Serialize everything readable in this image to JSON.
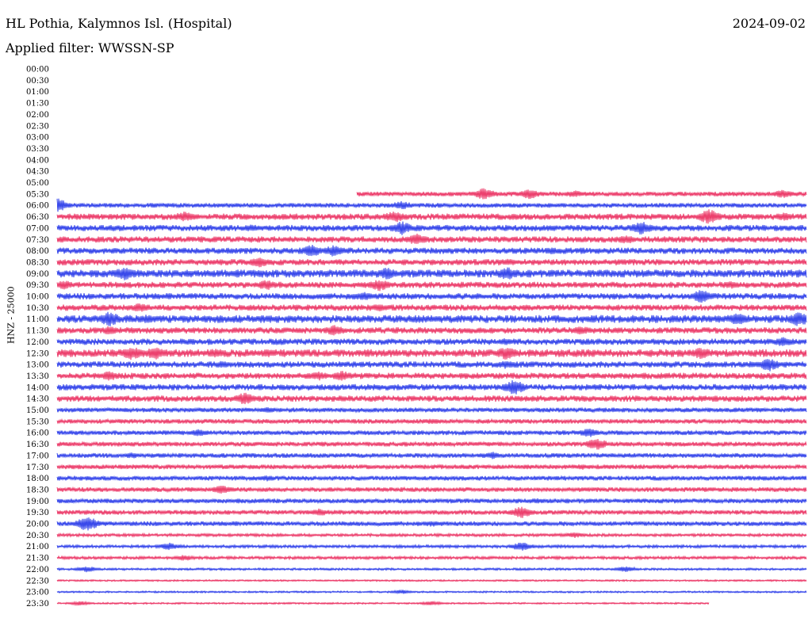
{
  "header": {
    "station": "HL Pothia, Kalymnos Isl. (Hospital)",
    "date": "2024-09-02",
    "filter_label": "Applied filter: WWSSN-SP"
  },
  "chart_data": {
    "type": "line",
    "title": "HL Pothia, Kalymnos Isl. (Hospital)",
    "subtitle": "Applied filter: WWSSN-SP",
    "ylabel": "HNZ - 25000",
    "xlabel": "",
    "grid": false,
    "colors": {
      "odd_rows": "#e8134b",
      "even_rows": "#0a1ee6"
    },
    "rows": [
      {
        "label": "00:00",
        "amp": 0
      },
      {
        "label": "00:30",
        "amp": 0
      },
      {
        "label": "01:00",
        "amp": 0
      },
      {
        "label": "01:30",
        "amp": 0
      },
      {
        "label": "02:00",
        "amp": 0
      },
      {
        "label": "02:30",
        "amp": 0
      },
      {
        "label": "03:00",
        "amp": 0
      },
      {
        "label": "03:30",
        "amp": 0
      },
      {
        "label": "04:00",
        "amp": 0
      },
      {
        "label": "04:30",
        "amp": 0
      },
      {
        "label": "05:00",
        "amp": 0
      },
      {
        "label": "05:30",
        "amp": 3,
        "start": 0.4,
        "events": [
          [
            0.57,
            8
          ],
          [
            0.63,
            7
          ],
          [
            0.69,
            5
          ],
          [
            0.97,
            6
          ]
        ]
      },
      {
        "label": "06:00",
        "amp": 3,
        "events": [
          [
            0.0,
            10
          ],
          [
            0.46,
            6
          ]
        ]
      },
      {
        "label": "06:30",
        "amp": 4,
        "events": [
          [
            0.17,
            7
          ],
          [
            0.45,
            8
          ],
          [
            0.87,
            10
          ],
          [
            0.97,
            6
          ]
        ]
      },
      {
        "label": "07:00",
        "amp": 4,
        "events": [
          [
            0.46,
            9
          ],
          [
            0.78,
            9
          ],
          [
            0.26,
            5
          ]
        ]
      },
      {
        "label": "07:30",
        "amp": 4,
        "events": [
          [
            0.48,
            8
          ],
          [
            0.76,
            6
          ]
        ]
      },
      {
        "label": "08:00",
        "amp": 4,
        "events": [
          [
            0.34,
            8
          ],
          [
            0.37,
            8
          ],
          [
            0.66,
            5
          ]
        ]
      },
      {
        "label": "08:30",
        "amp": 4,
        "events": [
          [
            0.27,
            7
          ],
          [
            0.6,
            5
          ]
        ]
      },
      {
        "label": "09:00",
        "amp": 5,
        "events": [
          [
            0.09,
            9
          ],
          [
            0.44,
            8
          ],
          [
            0.6,
            9
          ]
        ]
      },
      {
        "label": "09:30",
        "amp": 4,
        "events": [
          [
            0.01,
            6
          ],
          [
            0.28,
            7
          ],
          [
            0.43,
            8
          ],
          [
            0.9,
            5
          ]
        ]
      },
      {
        "label": "10:00",
        "amp": 4,
        "events": [
          [
            0.41,
            6
          ],
          [
            0.86,
            9
          ]
        ]
      },
      {
        "label": "10:30",
        "amp": 4,
        "events": [
          [
            0.11,
            6
          ],
          [
            0.43,
            5
          ]
        ]
      },
      {
        "label": "11:00",
        "amp": 5,
        "events": [
          [
            0.07,
            10
          ],
          [
            0.12,
            6
          ],
          [
            0.91,
            9
          ],
          [
            0.99,
            10
          ]
        ]
      },
      {
        "label": "11:30",
        "amp": 4,
        "events": [
          [
            0.07,
            6
          ],
          [
            0.37,
            7
          ],
          [
            0.7,
            6
          ]
        ]
      },
      {
        "label": "12:00",
        "amp": 4,
        "events": [
          [
            0.6,
            5
          ],
          [
            0.97,
            7
          ]
        ]
      },
      {
        "label": "12:30",
        "amp": 5,
        "events": [
          [
            0.1,
            9
          ],
          [
            0.13,
            9
          ],
          [
            0.21,
            6
          ],
          [
            0.28,
            6
          ],
          [
            0.6,
            9
          ],
          [
            0.86,
            8
          ]
        ]
      },
      {
        "label": "13:00",
        "amp": 4,
        "events": [
          [
            0.22,
            5
          ],
          [
            0.6,
            6
          ],
          [
            0.95,
            9
          ]
        ]
      },
      {
        "label": "13:30",
        "amp": 4,
        "events": [
          [
            0.07,
            7
          ],
          [
            0.35,
            6
          ],
          [
            0.38,
            7
          ]
        ]
      },
      {
        "label": "14:00",
        "amp": 4,
        "events": [
          [
            0.61,
            10
          ]
        ]
      },
      {
        "label": "14:30",
        "amp": 4,
        "events": [
          [
            0.25,
            8
          ]
        ]
      },
      {
        "label": "15:00",
        "amp": 3,
        "events": [
          [
            0.28,
            4
          ]
        ]
      },
      {
        "label": "15:30",
        "amp": 3,
        "events": [
          [
            0.5,
            4
          ]
        ]
      },
      {
        "label": "16:00",
        "amp": 3,
        "events": [
          [
            0.19,
            5
          ],
          [
            0.71,
            6
          ]
        ]
      },
      {
        "label": "16:30",
        "amp": 3,
        "events": [
          [
            0.72,
            8
          ]
        ]
      },
      {
        "label": "17:00",
        "amp": 3,
        "events": [
          [
            0.1,
            4
          ],
          [
            0.58,
            5
          ]
        ]
      },
      {
        "label": "17:30",
        "amp": 3,
        "events": [
          [
            0.7,
            4
          ]
        ]
      },
      {
        "label": "18:00",
        "amp": 3,
        "events": [
          [
            0.28,
            4
          ]
        ]
      },
      {
        "label": "18:30",
        "amp": 3,
        "events": [
          [
            0.22,
            6
          ]
        ]
      },
      {
        "label": "19:00",
        "amp": 3,
        "events": [
          [
            0.64,
            4
          ]
        ]
      },
      {
        "label": "19:30",
        "amp": 3,
        "events": [
          [
            0.62,
            8
          ],
          [
            0.35,
            5
          ]
        ]
      },
      {
        "label": "20:00",
        "amp": 3,
        "events": [
          [
            0.04,
            10
          ],
          [
            0.5,
            4
          ]
        ]
      },
      {
        "label": "20:30",
        "amp": 2,
        "events": [
          [
            0.69,
            4
          ]
        ]
      },
      {
        "label": "21:00",
        "amp": 2,
        "events": [
          [
            0.15,
            5
          ],
          [
            0.62,
            6
          ]
        ]
      },
      {
        "label": "21:30",
        "amp": 2,
        "events": [
          [
            0.17,
            4
          ]
        ]
      },
      {
        "label": "22:00",
        "amp": 1.5,
        "events": [
          [
            0.04,
            4
          ],
          [
            0.76,
            4
          ]
        ]
      },
      {
        "label": "22:30",
        "amp": 1.2,
        "events": []
      },
      {
        "label": "23:00",
        "amp": 1.2,
        "events": [
          [
            0.46,
            3
          ]
        ]
      },
      {
        "label": "23:30",
        "amp": 1.2,
        "end": 0.87,
        "events": [
          [
            0.03,
            3
          ],
          [
            0.5,
            3
          ]
        ]
      }
    ]
  }
}
